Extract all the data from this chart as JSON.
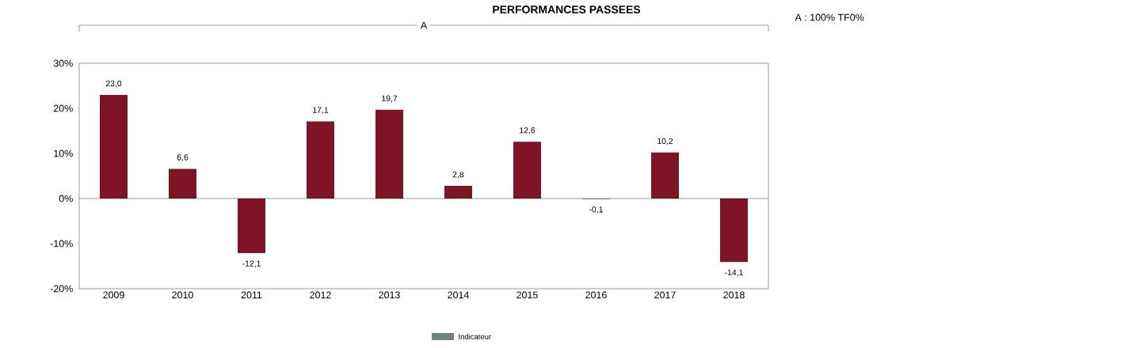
{
  "chart_data": {
    "type": "bar",
    "title": "PERFORMANCES PASSEES",
    "annotations": [
      "A",
      "A : 100% TF0%"
    ],
    "categories": [
      "2009",
      "2010",
      "2011",
      "2012",
      "2013",
      "2014",
      "2015",
      "2016",
      "2017",
      "2018"
    ],
    "series": [
      {
        "color": "#7f1426",
        "values": [
          23.0,
          6.6,
          -12.1,
          17.1,
          19.7,
          2.8,
          12.6,
          -0.1,
          10.2,
          -14.1
        ],
        "value_labels": [
          "23,0",
          "6,6",
          "-12,1",
          "17,1",
          "19,7",
          "2,8",
          "12,6",
          "-0,1",
          "10,2",
          "-14,1"
        ]
      },
      {
        "name": "Indicateur",
        "color": "#6f8577",
        "values": [
          null,
          null,
          null,
          null,
          null,
          null,
          null,
          null,
          null,
          null
        ]
      }
    ],
    "ylim": [
      -20,
      30
    ],
    "yticks": [
      {
        "value": -20,
        "label": "-20%"
      },
      {
        "value": -10,
        "label": "-10%"
      },
      {
        "value": 0,
        "label": "0%"
      },
      {
        "value": 10,
        "label": "10%"
      },
      {
        "value": 20,
        "label": "20%"
      },
      {
        "value": 30,
        "label": "30%"
      }
    ],
    "ref_lines": [
      {
        "axis": "y",
        "value": 0
      }
    ],
    "grid": false,
    "legend": "bottom"
  }
}
